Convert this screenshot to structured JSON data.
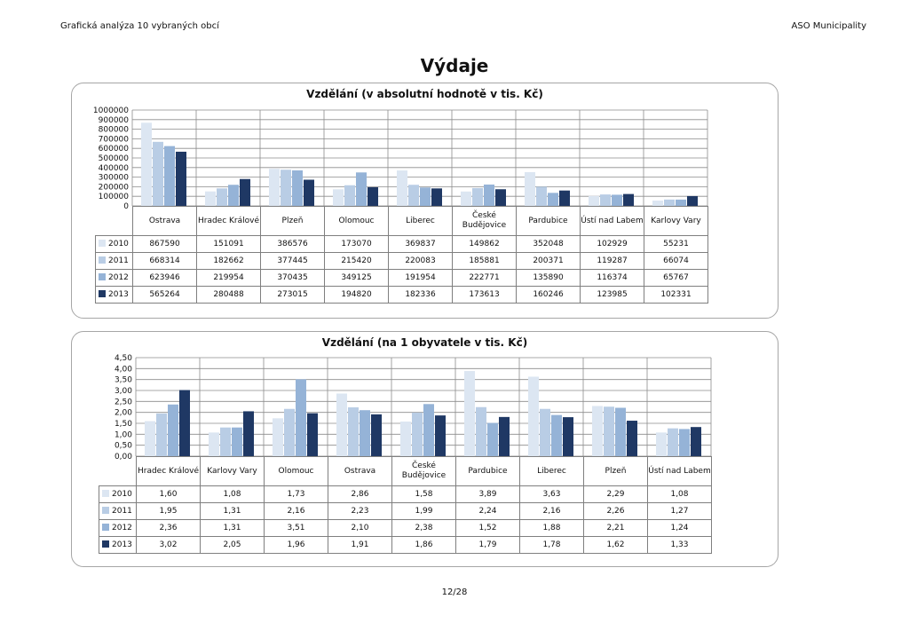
{
  "header": {
    "left": "Grafická analýza 10 vybraných obcí",
    "right": "ASO Municipality"
  },
  "title": "Výdaje",
  "footer": {
    "page": "12/28"
  },
  "colors": {
    "2010": "#dce6f2",
    "2011": "#b9cde5",
    "2012": "#95b3d7",
    "2013": "#1f3864",
    "grid": "#8c8c8c"
  },
  "chart_data": [
    {
      "type": "bar",
      "title": "Vzdělání (v absolutní hodnotě v tis. Kč)",
      "categories": [
        "Ostrava",
        "Hradec Králové",
        "Plzeň",
        "Olomouc",
        "Liberec",
        "České Budějovice",
        "Pardubice",
        "Ústí nad Labem",
        "Karlovy Vary"
      ],
      "series": [
        {
          "name": "2010",
          "values": [
            "867590",
            "151091",
            "386576",
            "173070",
            "369837",
            "149862",
            "352048",
            "102929",
            "55231"
          ]
        },
        {
          "name": "2011",
          "values": [
            "668314",
            "182662",
            "377445",
            "215420",
            "220083",
            "185881",
            "200371",
            "119287",
            "66074"
          ]
        },
        {
          "name": "2012",
          "values": [
            "623946",
            "219954",
            "370435",
            "349125",
            "191954",
            "222771",
            "135890",
            "116374",
            "65767"
          ]
        },
        {
          "name": "2013",
          "values": [
            "565264",
            "280488",
            "273015",
            "194820",
            "182336",
            "173613",
            "160246",
            "123985",
            "102331"
          ]
        }
      ],
      "yticks": [
        "1000000",
        "900000",
        "800000",
        "700000",
        "600000",
        "500000",
        "400000",
        "300000",
        "200000",
        "100000",
        "0"
      ],
      "ylim": [
        0,
        1000000
      ],
      "grid": true,
      "legend": "data-table"
    },
    {
      "type": "bar",
      "title": "Vzdělání (na 1 obyvatele v tis. Kč)",
      "categories": [
        "Hradec Králové",
        "Karlovy Vary",
        "Olomouc",
        "Ostrava",
        "České Budějovice",
        "Pardubice",
        "Liberec",
        "Plzeň",
        "Ústí nad Labem"
      ],
      "series": [
        {
          "name": "2010",
          "values": [
            "1,60",
            "1,08",
            "1,73",
            "2,86",
            "1,58",
            "3,89",
            "3,63",
            "2,29",
            "1,08"
          ]
        },
        {
          "name": "2011",
          "values": [
            "1,95",
            "1,31",
            "2,16",
            "2,23",
            "1,99",
            "2,24",
            "2,16",
            "2,26",
            "1,27"
          ]
        },
        {
          "name": "2012",
          "values": [
            "2,36",
            "1,31",
            "3,51",
            "2,10",
            "2,38",
            "1,52",
            "1,88",
            "2,21",
            "1,24"
          ]
        },
        {
          "name": "2013",
          "values": [
            "3,02",
            "2,05",
            "1,96",
            "1,91",
            "1,86",
            "1,79",
            "1,78",
            "1,62",
            "1,33"
          ]
        }
      ],
      "yticks": [
        "4,50",
        "4,00",
        "3,50",
        "3,00",
        "2,50",
        "2,00",
        "1,50",
        "1,00",
        "0,50",
        "0,00"
      ],
      "ylim": [
        0,
        4.5
      ],
      "grid": true,
      "legend": "data-table"
    }
  ]
}
